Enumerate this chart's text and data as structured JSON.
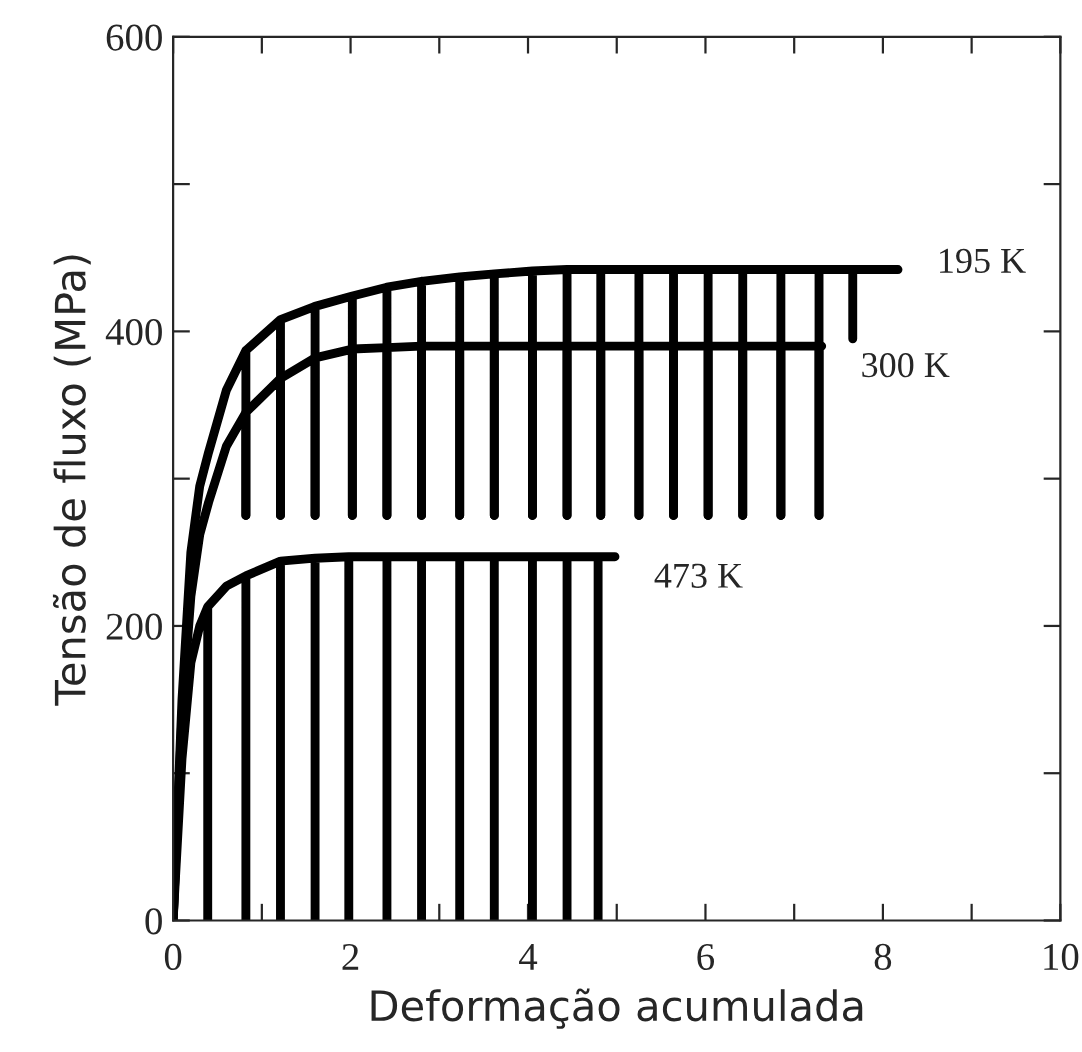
{
  "chart_data": {
    "type": "line",
    "xlabel": "Deformação acumulada",
    "ylabel": "Tensão de fluxo (MPa)",
    "xlim": [
      0,
      10
    ],
    "ylim": [
      0,
      600
    ],
    "xticks": [
      0,
      {
        "value": 1,
        "label": null
      },
      2,
      {
        "value": 3,
        "label": null
      },
      4,
      {
        "value": 5,
        "label": null
      },
      6,
      {
        "value": 7,
        "label": null
      },
      8,
      {
        "value": 9,
        "label": null
      },
      10
    ],
    "yticks": [
      0,
      {
        "value": 100,
        "label": null
      },
      200,
      {
        "value": 300,
        "label": null
      },
      400,
      {
        "value": 500,
        "label": null
      },
      600
    ],
    "grid": false,
    "legend": false,
    "marker": "none",
    "line_style": "solid",
    "series": [
      {
        "name": "195 K",
        "color": "#000000",
        "x": [
          0,
          0.1,
          0.2,
          0.3,
          0.4,
          0.6,
          0.82,
          0.82,
          0.82,
          1.21,
          1.21,
          1.21,
          1.6,
          1.6,
          1.6,
          2.02,
          2.02,
          2.02,
          2.41,
          2.41,
          2.41,
          2.8,
          2.8,
          2.8,
          3.23,
          3.23,
          3.23,
          3.62,
          3.62,
          3.62,
          4.05,
          4.05,
          4.05,
          4.44,
          4.44,
          4.44,
          4.82,
          4.82,
          4.82,
          5.25,
          5.25,
          5.25,
          5.64,
          5.64,
          5.64,
          6.03,
          6.03,
          6.03,
          6.42,
          6.42,
          6.42,
          6.85,
          6.85,
          6.85,
          7.28,
          7.28,
          7.28,
          7.66,
          7.66,
          7.66,
          8.17
        ],
        "values": [
          0,
          150,
          250,
          295,
          318,
          360,
          387,
          275,
          387,
          408,
          275,
          408,
          417,
          275,
          417,
          424,
          275,
          424,
          430,
          275,
          430,
          434,
          275,
          434,
          437,
          275,
          437,
          439,
          275,
          439,
          441,
          275,
          441,
          442,
          275,
          442,
          442,
          275,
          442,
          442,
          275,
          442,
          442,
          275,
          442,
          442,
          275,
          442,
          442,
          275,
          442,
          442,
          275,
          442,
          442,
          275,
          442,
          442,
          395,
          442,
          442
        ]
      },
      {
        "name": "300 K",
        "color": "#000000",
        "x": [
          0,
          0.1,
          0.2,
          0.3,
          0.4,
          0.6,
          0.82,
          0.82,
          0.82,
          1.21,
          1.21,
          1.21,
          1.6,
          1.6,
          1.6,
          2.02,
          2.02,
          2.02,
          2.41,
          2.41,
          2.41,
          2.8,
          2.8,
          2.8,
          3.23,
          3.23,
          3.23,
          3.62,
          3.62,
          3.62,
          4.05,
          4.05,
          4.05,
          4.44,
          4.44,
          4.44,
          4.82,
          4.82,
          4.82,
          5.25,
          5.25,
          5.25,
          5.64,
          5.64,
          5.64,
          6.03,
          6.03,
          6.03,
          6.42,
          6.42,
          6.42,
          6.85,
          6.85,
          6.85,
          7.28,
          7.28,
          7.28,
          7.31
        ],
        "values": [
          0,
          140,
          220,
          262,
          284,
          322,
          345,
          275,
          345,
          368,
          275,
          368,
          382,
          275,
          382,
          388,
          275,
          388,
          389,
          275,
          389,
          390,
          275,
          390,
          390,
          275,
          390,
          390,
          275,
          390,
          390,
          275,
          390,
          390,
          275,
          390,
          390,
          275,
          390,
          390,
          275,
          390,
          390,
          275,
          390,
          390,
          275,
          390,
          390,
          275,
          390,
          390,
          275,
          390,
          390,
          275,
          390,
          390
        ]
      },
      {
        "name": "473 K",
        "color": "#000000",
        "x": [
          0,
          0.1,
          0.2,
          0.3,
          0.39,
          0.39,
          0.39,
          0.6,
          0.82,
          0.82,
          0.82,
          1.21,
          1.21,
          1.21,
          1.6,
          1.6,
          1.6,
          1.98,
          1.98,
          1.98,
          2.41,
          2.41,
          2.41,
          2.8,
          2.8,
          2.8,
          3.23,
          3.23,
          3.23,
          3.62,
          3.62,
          3.62,
          4.05,
          4.05,
          4.05,
          4.44,
          4.44,
          4.44,
          4.79,
          4.79,
          4.79,
          4.98
        ],
        "values": [
          0,
          110,
          175,
          200,
          213,
          0,
          213,
          227,
          234,
          0,
          234,
          244,
          0,
          244,
          246,
          0,
          246,
          247,
          0,
          247,
          247,
          0,
          247,
          247,
          0,
          247,
          247,
          0,
          247,
          247,
          0,
          247,
          247,
          0,
          247,
          247,
          0,
          247,
          247,
          0,
          247,
          247
        ]
      }
    ]
  }
}
